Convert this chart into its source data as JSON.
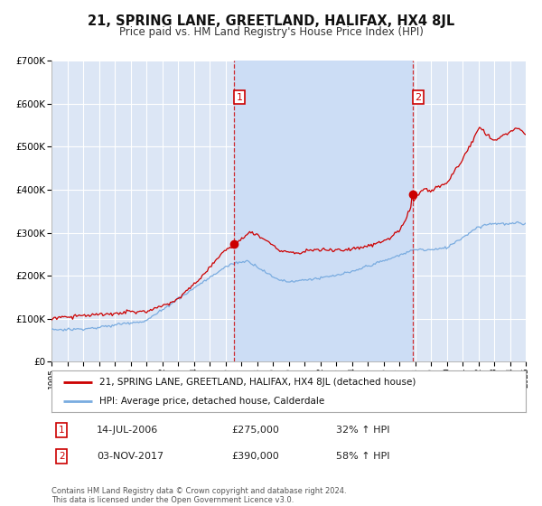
{
  "title": "21, SPRING LANE, GREETLAND, HALIFAX, HX4 8JL",
  "subtitle": "Price paid vs. HM Land Registry's House Price Index (HPI)",
  "title_fontsize": 10.5,
  "subtitle_fontsize": 8.5,
  "background_color": "#ffffff",
  "plot_bg_color": "#dce6f5",
  "highlight_color": "#ccddf5",
  "grid_color": "#ffffff",
  "red_line_color": "#cc0000",
  "blue_line_color": "#7aace0",
  "sale1_date_x": 2006.54,
  "sale1_price": 275000,
  "sale1_label": "14-JUL-2006",
  "sale1_pct": "32%",
  "sale2_date_x": 2017.84,
  "sale2_price": 390000,
  "sale2_label": "03-NOV-2017",
  "sale2_pct": "58%",
  "xmin": 1995,
  "xmax": 2025,
  "ymin": 0,
  "ymax": 700000,
  "yticks": [
    0,
    100000,
    200000,
    300000,
    400000,
    500000,
    600000,
    700000
  ],
  "ytick_labels": [
    "£0",
    "£100K",
    "£200K",
    "£300K",
    "£400K",
    "£500K",
    "£600K",
    "£700K"
  ],
  "legend_line1": "21, SPRING LANE, GREETLAND, HALIFAX, HX4 8JL (detached house)",
  "legend_line2": "HPI: Average price, detached house, Calderdale",
  "footer_line1": "Contains HM Land Registry data © Crown copyright and database right 2024.",
  "footer_line2": "This data is licensed under the Open Government Licence v3.0."
}
